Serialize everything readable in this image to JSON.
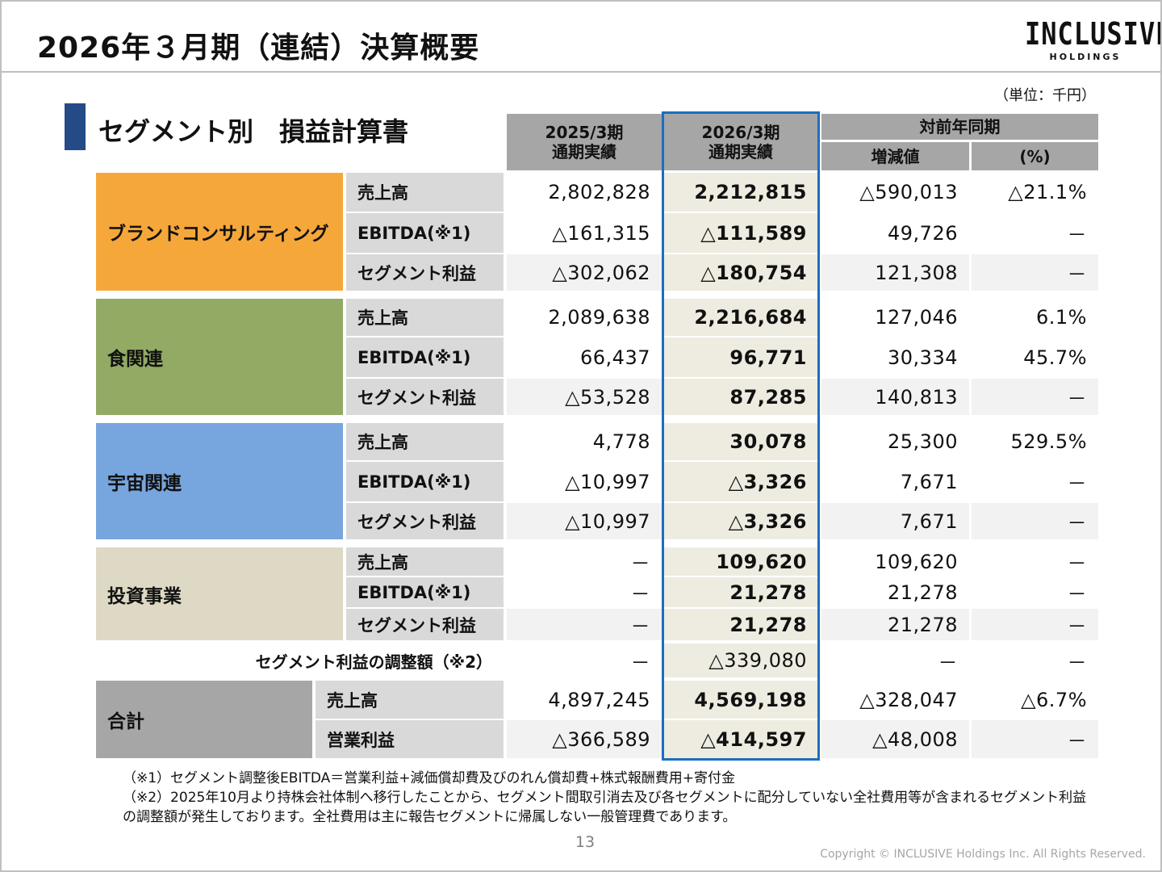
{
  "header": {
    "title": "2026年３月期（連結）決算概要",
    "logo_main": "INCLUSIVE",
    "logo_sub": "HOLDINGS"
  },
  "unit_note": "（単位：千円）",
  "section_title": "セグメント別　損益計算書",
  "columns": {
    "prev_line1": "2025/3期",
    "prev_line2": "通期実績",
    "cur_line1": "2026/3期",
    "cur_line2": "通期実績",
    "yoy": "対前年同期",
    "diff": "増減値",
    "pct": "(%)"
  },
  "segments": [
    {
      "name": "ブランドコンサルティング",
      "color": "#f6a73a",
      "rows": [
        {
          "metric": "売上高",
          "prev": "2,802,828",
          "cur": "2,212,815",
          "diff": "△590,013",
          "pct": "△21.1%"
        },
        {
          "metric": "EBITDA(※1)",
          "prev": "△161,315",
          "cur": "△111,589",
          "diff": "49,726",
          "pct": "－"
        },
        {
          "metric": "セグメント利益",
          "prev": "△302,062",
          "cur": "△180,754",
          "diff": "121,308",
          "pct": "－"
        }
      ]
    },
    {
      "name": "食関連",
      "color": "#92aa63",
      "rows": [
        {
          "metric": "売上高",
          "prev": "2,089,638",
          "cur": "2,216,684",
          "diff": "127,046",
          "pct": "6.1%"
        },
        {
          "metric": "EBITDA(※1)",
          "prev": "66,437",
          "cur": "96,771",
          "diff": "30,334",
          "pct": "45.7%"
        },
        {
          "metric": "セグメント利益",
          "prev": "△53,528",
          "cur": "87,285",
          "diff": "140,813",
          "pct": "－"
        }
      ]
    },
    {
      "name": "宇宙関連",
      "color": "#77a5dd",
      "rows": [
        {
          "metric": "売上高",
          "prev": "4,778",
          "cur": "30,078",
          "diff": "25,300",
          "pct": "529.5%"
        },
        {
          "metric": "EBITDA(※1)",
          "prev": "△10,997",
          "cur": "△3,326",
          "diff": "7,671",
          "pct": "－"
        },
        {
          "metric": "セグメント利益",
          "prev": "△10,997",
          "cur": "△3,326",
          "diff": "7,671",
          "pct": "－"
        }
      ]
    },
    {
      "name": "投資事業",
      "color": "#ddd9c4",
      "rows": [
        {
          "metric": "売上高",
          "prev": "－",
          "cur": "109,620",
          "diff": "109,620",
          "pct": "－"
        },
        {
          "metric": "EBITDA(※1)",
          "prev": "－",
          "cur": "21,278",
          "diff": "21,278",
          "pct": "－"
        },
        {
          "metric": "セグメント利益",
          "prev": "－",
          "cur": "21,278",
          "diff": "21,278",
          "pct": "－"
        }
      ]
    }
  ],
  "adjustment": {
    "label": "セグメント利益の調整額（※2）",
    "prev": "－",
    "cur": "△339,080",
    "diff": "－",
    "pct": "－"
  },
  "total": {
    "name": "合計",
    "color": "#a6a6a6",
    "rows": [
      {
        "metric": "売上高",
        "prev": "4,897,245",
        "cur": "4,569,198",
        "diff": "△328,047",
        "pct": "△6.7%"
      },
      {
        "metric": "営業利益",
        "prev": "△366,589",
        "cur": "△414,597",
        "diff": "△48,008",
        "pct": "－"
      }
    ]
  },
  "notes": [
    "（※1）セグメント調整後EBITDA＝営業利益+減価償却費及びのれん償却費+株式報酬費用+寄付金",
    "（※2）2025年10月より持株会社体制へ移行したことから、セグメント間取引消去及び各セグメントに配分していない全社費用等が含まれるセグメント利益の調整額が発生しております。全社費用は主に報告セグメントに帰属しない一般管理費であります。"
  ],
  "page_number": "13",
  "copyright": "Copyright © INCLUSIVE Holdings Inc. All Rights Reserved."
}
